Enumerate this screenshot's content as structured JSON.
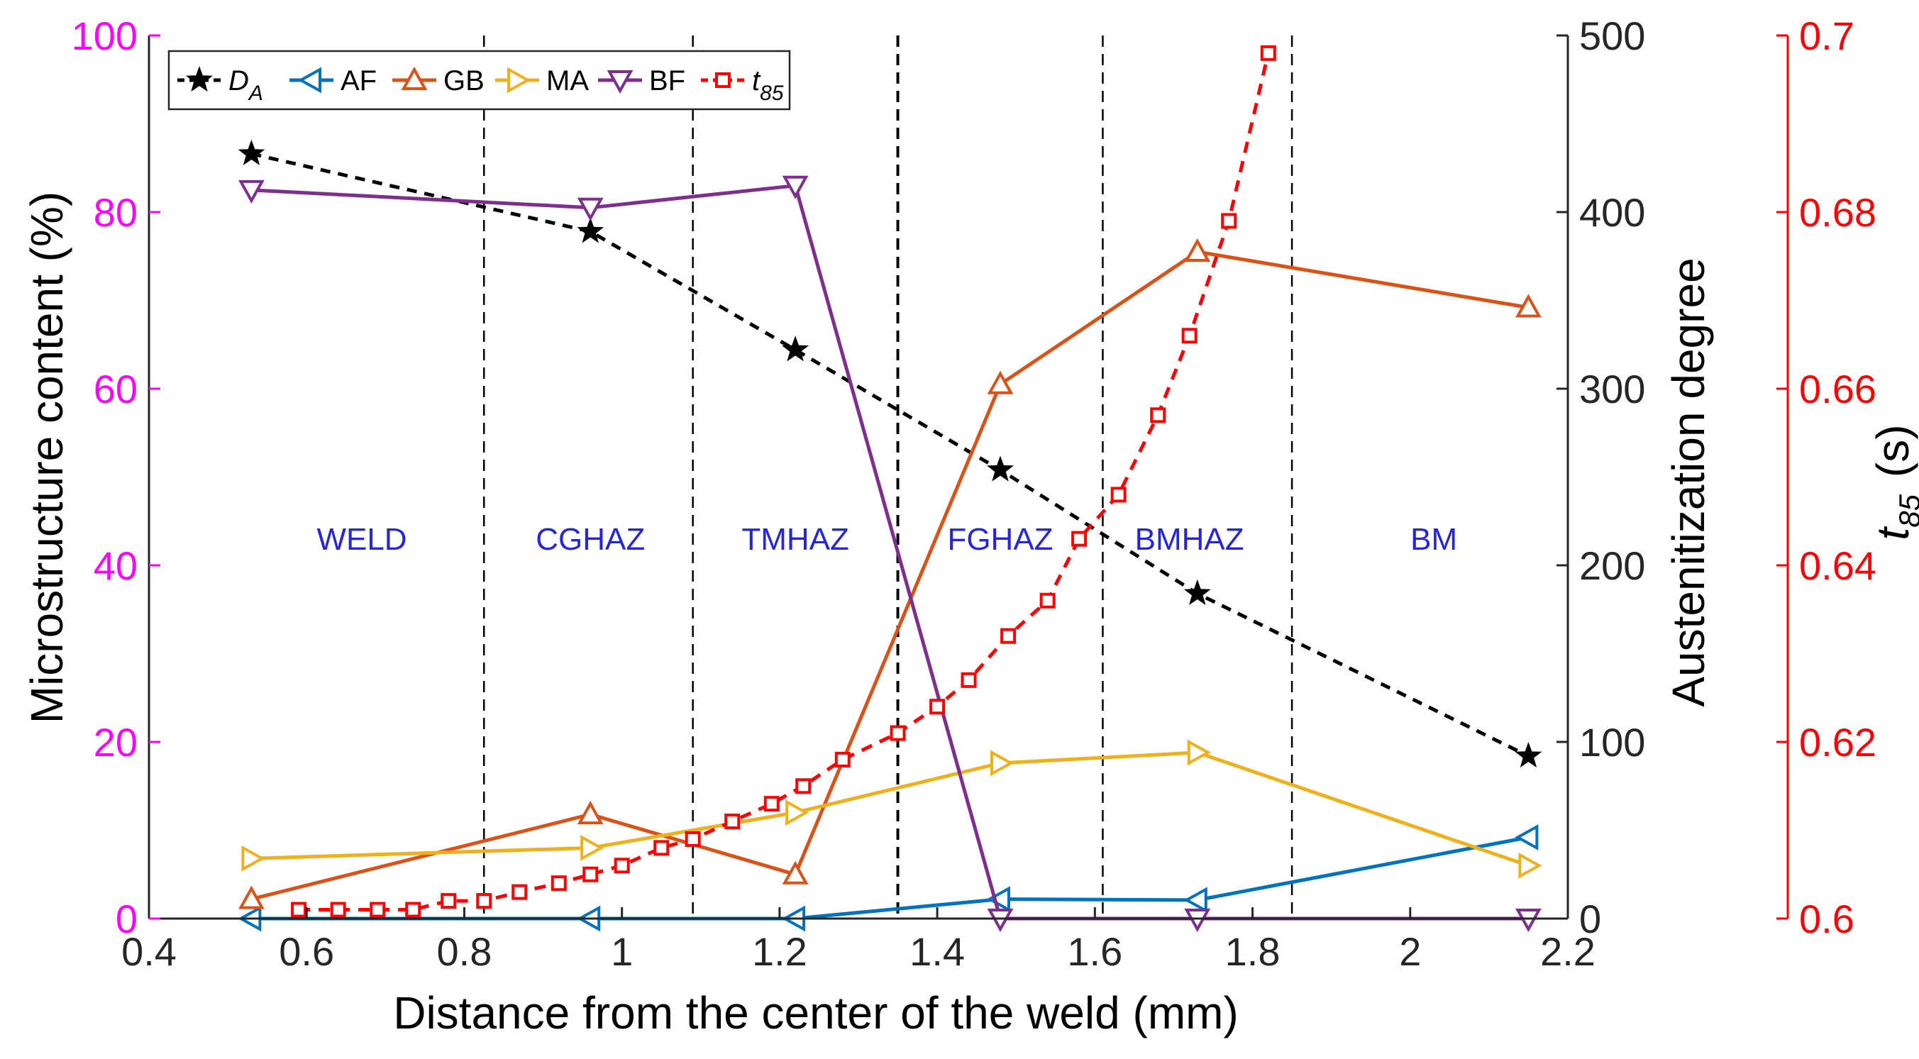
{
  "chart_data": {
    "type": "line",
    "x_axis": {
      "label": "Distance from the center of the weld (mm)",
      "range": [
        0.4,
        2.2
      ],
      "ticks": [
        "0.4",
        "0.6",
        "0.8",
        "1",
        "1.2",
        "1.4",
        "1.6",
        "1.8",
        "2",
        "2.2"
      ]
    },
    "y_left": {
      "label": "Microstructure content (%)",
      "range": [
        0,
        100
      ],
      "ticks": [
        "0",
        "20",
        "40",
        "60",
        "80",
        "100"
      ],
      "color": "#ff00ff"
    },
    "y_right1": {
      "label": "Austenitization degree",
      "range": [
        0,
        500
      ],
      "ticks": [
        "0",
        "100",
        "200",
        "300",
        "400",
        "500"
      ],
      "color": "#000000"
    },
    "y_right2": {
      "label_main": "t",
      "label_sub": "85",
      "label_unit": "(s)",
      "range": [
        0.6,
        0.7
      ],
      "ticks": [
        "0.6",
        "0.62",
        "0.64",
        "0.66",
        "0.68",
        "0.7"
      ],
      "color": "#ff0000"
    },
    "region_boundaries": [
      0.825,
      1.09,
      1.35,
      1.61,
      1.85
    ],
    "regions": [
      {
        "label": "WELD",
        "x": 0.67
      },
      {
        "label": "CGHAZ",
        "x": 0.96
      },
      {
        "label": "TMHAZ",
        "x": 1.22
      },
      {
        "label": "FGHAZ",
        "x": 1.48
      },
      {
        "label": "BMHAZ",
        "x": 1.72
      },
      {
        "label": "BM",
        "x": 2.03
      }
    ],
    "series": [
      {
        "name": "D",
        "sub": "A",
        "color": "#000000",
        "marker": "star",
        "dash": true,
        "axis": "right1",
        "x": [
          0.53,
          0.96,
          1.22,
          1.48,
          1.73,
          2.15
        ],
        "y": [
          433,
          389,
          322,
          254,
          184,
          92
        ]
      },
      {
        "name": "AF",
        "sub": "",
        "color": "#0072bd",
        "marker": "tri-left",
        "dash": false,
        "axis": "left",
        "x": [
          0.53,
          0.96,
          1.22,
          1.48,
          1.73,
          2.15
        ],
        "y": [
          0,
          0,
          0,
          2.2,
          2.1,
          9.2
        ]
      },
      {
        "name": "GB",
        "sub": "",
        "color": "#d95319",
        "marker": "tri-up",
        "dash": false,
        "axis": "left",
        "x": [
          0.53,
          0.96,
          1.22,
          1.48,
          1.73,
          2.15
        ],
        "y": [
          2.2,
          11.8,
          5.0,
          60.5,
          75.5,
          69.2
        ]
      },
      {
        "name": "MA",
        "sub": "",
        "color": "#edb120",
        "marker": "tri-right",
        "dash": false,
        "axis": "left",
        "x": [
          0.53,
          0.96,
          1.22,
          1.48,
          1.73,
          2.15
        ],
        "y": [
          6.8,
          8.0,
          12.0,
          17.6,
          18.8,
          6.0
        ]
      },
      {
        "name": "BF",
        "sub": "",
        "color": "#7e2f8e",
        "marker": "tri-down",
        "dash": false,
        "axis": "left",
        "x": [
          0.53,
          0.96,
          1.22,
          1.48,
          1.73,
          2.15
        ],
        "y": [
          82.5,
          80.5,
          83.0,
          0,
          0,
          0
        ]
      },
      {
        "name": "t",
        "sub": "85",
        "color": "#ff0000",
        "marker": "square",
        "dash": true,
        "axis": "right2",
        "x": [
          0.59,
          0.64,
          0.69,
          0.735,
          0.78,
          0.825,
          0.87,
          0.92,
          0.96,
          1.0,
          1.05,
          1.09,
          1.14,
          1.19,
          1.23,
          1.28,
          1.35,
          1.4,
          1.44,
          1.49,
          1.54,
          1.58,
          1.63,
          1.68,
          1.72,
          1.77,
          1.82
        ],
        "y": [
          0.601,
          0.601,
          0.601,
          0.601,
          0.602,
          0.602,
          0.603,
          0.604,
          0.605,
          0.606,
          0.608,
          0.609,
          0.611,
          0.613,
          0.615,
          0.618,
          0.621,
          0.624,
          0.627,
          0.632,
          0.636,
          0.643,
          0.648,
          0.657,
          0.666,
          0.679,
          0.698
        ]
      }
    ]
  }
}
